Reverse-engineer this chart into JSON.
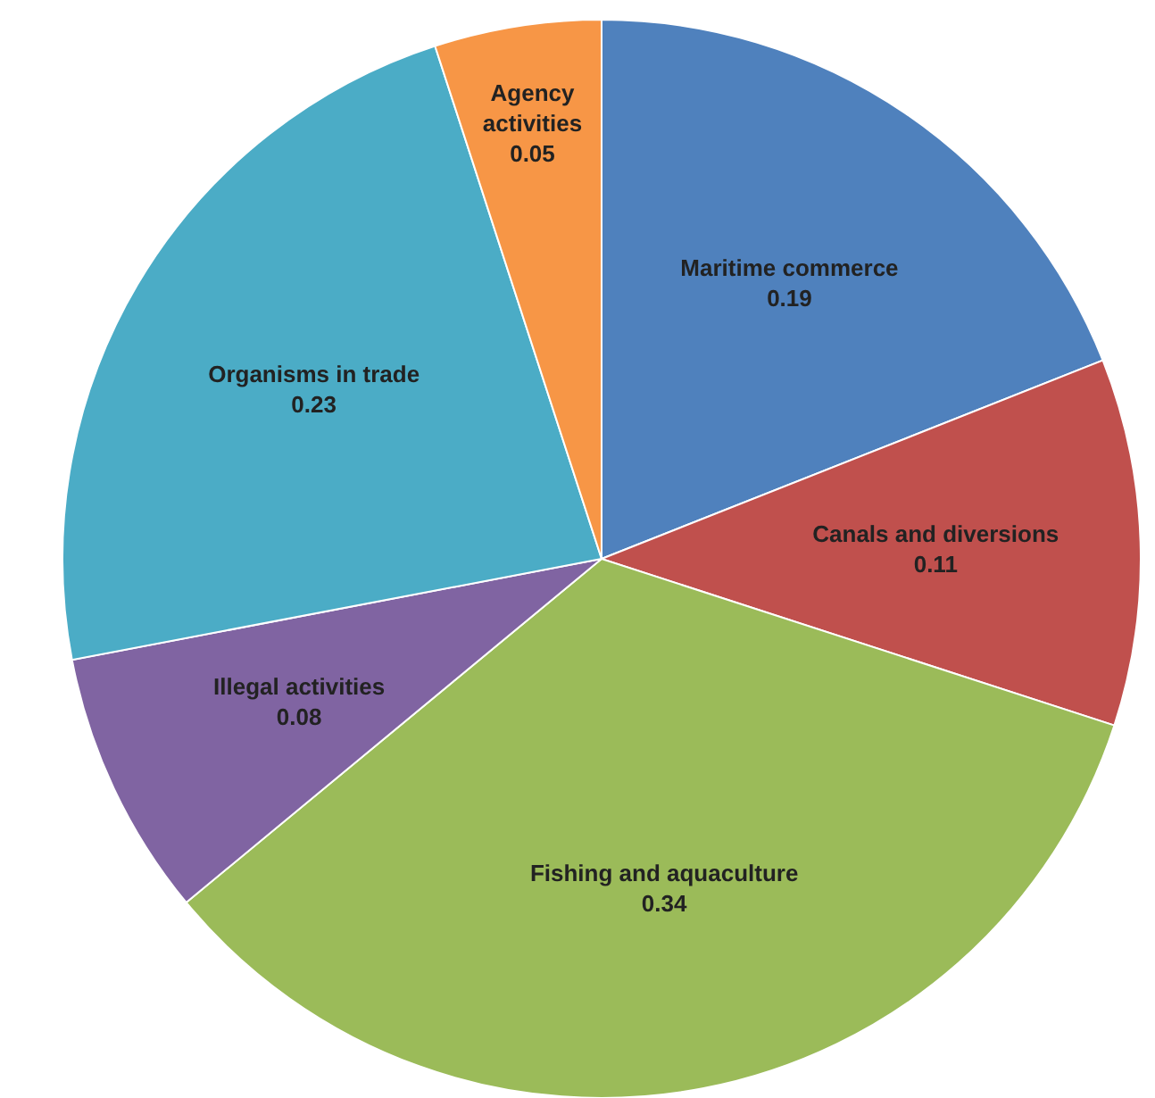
{
  "chart_data": {
    "type": "pie",
    "categories": [
      "Maritime commerce",
      "Canals and diversions",
      "Fishing and aquaculture",
      "Illegal activities",
      "Organisms in trade",
      "Agency activities"
    ],
    "values": [
      0.19,
      0.11,
      0.34,
      0.08,
      0.23,
      0.05
    ],
    "colors": [
      "#4f81bd",
      "#c0504d",
      "#9bbb59",
      "#8064a2",
      "#4bacc6",
      "#f79646"
    ],
    "data_labels": true,
    "legend": false
  }
}
